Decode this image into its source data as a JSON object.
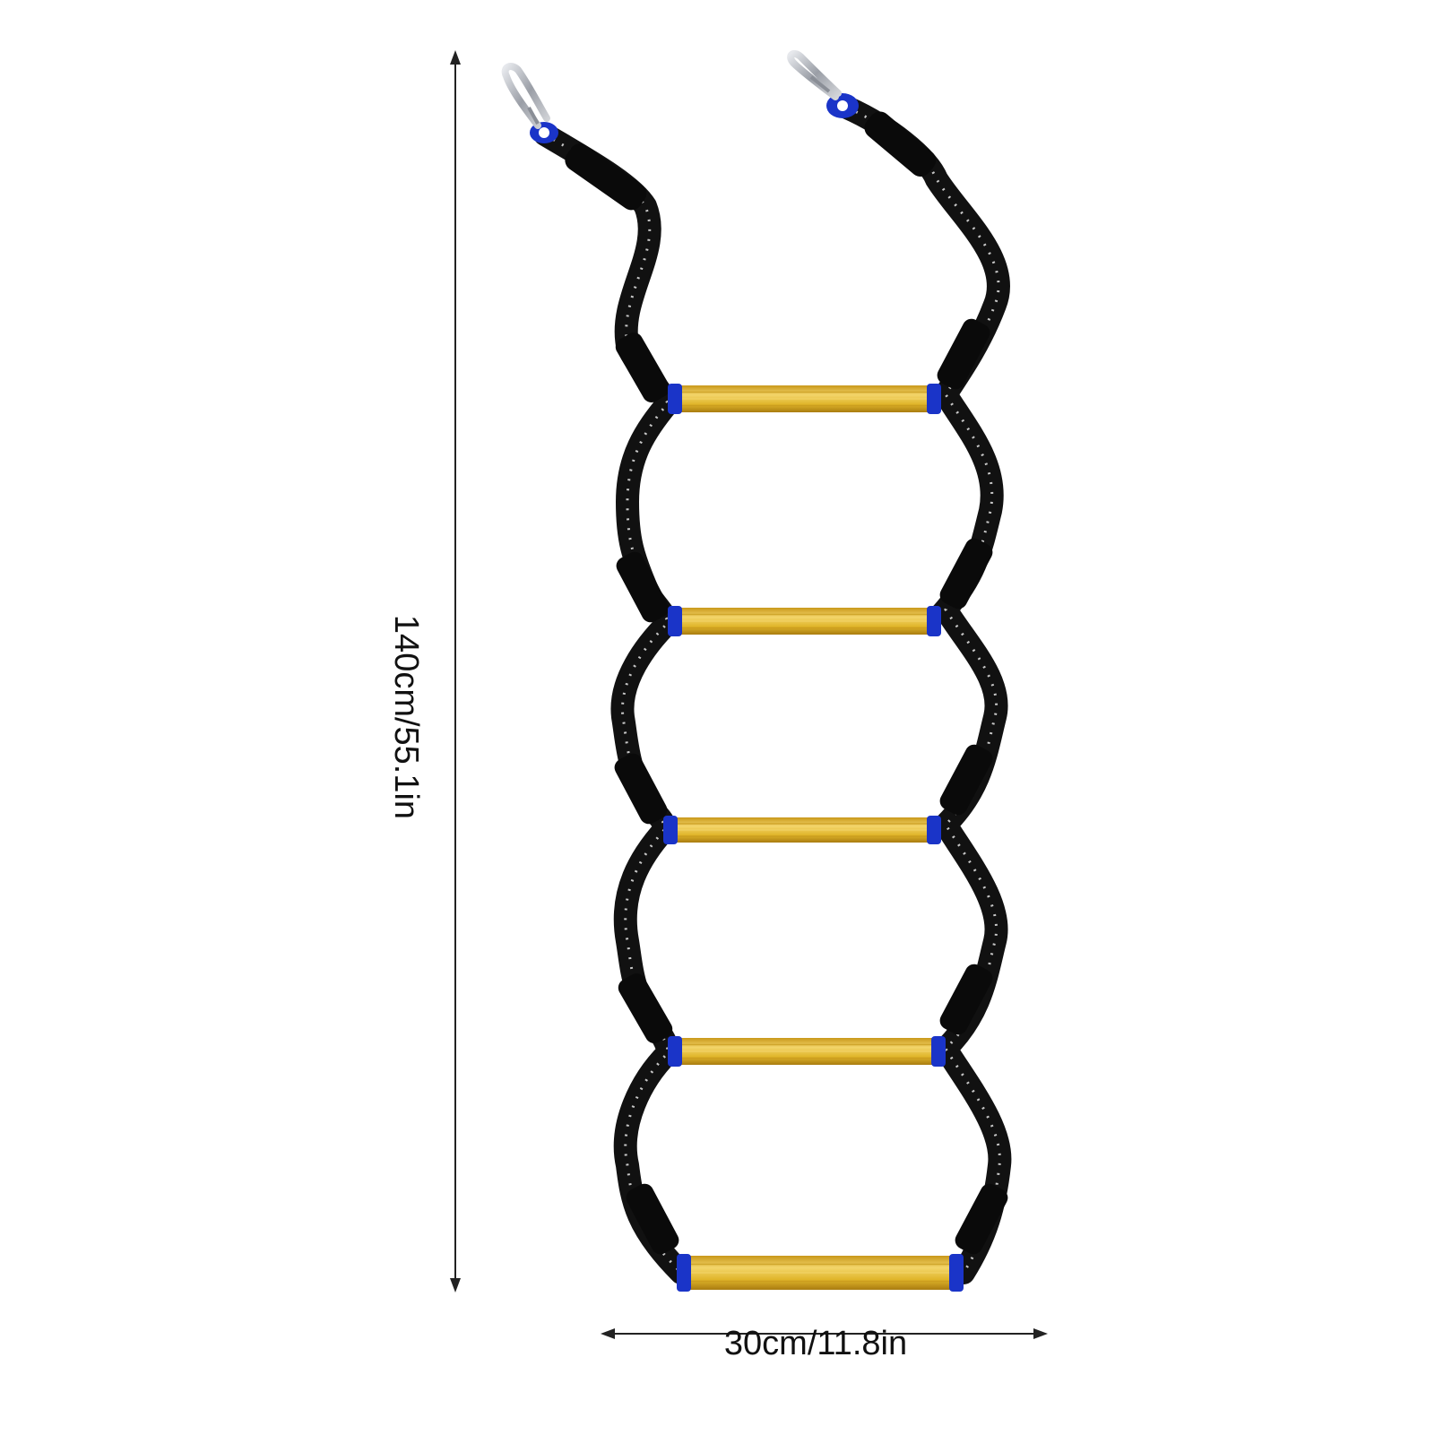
{
  "product": {
    "rung_count": 5,
    "colors": {
      "rope": "#111111",
      "rope_flecks": "#e8e8e8",
      "sleeve": "#0a0a0a",
      "rung": "#e0b52a",
      "rung_highlight": "#f3d56a",
      "rung_cap": "#1a34c8",
      "hook": "#b9bcc2",
      "arrow": "#222222"
    }
  },
  "dimensions": {
    "height_label": "140cm/55.1in",
    "width_label": "30cm/11.8in"
  }
}
